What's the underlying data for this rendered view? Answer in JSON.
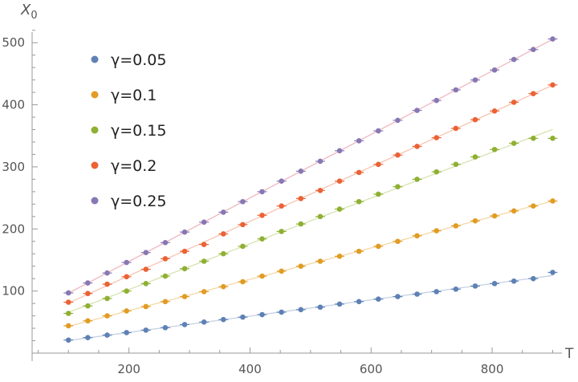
{
  "chart_data": {
    "type": "scatter",
    "xlabel": "T",
    "ylabel_main": "X",
    "ylabel_sub": "0",
    "xlim": [
      40,
      910
    ],
    "ylim": [
      0,
      530
    ],
    "xticks": [
      200,
      400,
      600,
      800
    ],
    "yticks": [
      100,
      200,
      300,
      400,
      500
    ],
    "x": [
      100,
      132,
      164,
      196,
      228,
      260,
      292,
      324,
      356,
      388,
      420,
      452,
      484,
      516,
      548,
      580,
      612,
      644,
      676,
      708,
      740,
      772,
      804,
      836,
      868,
      900
    ],
    "grid": false,
    "legend_position": "top-left",
    "series": [
      {
        "name": "γ=0.05",
        "color": "#5E81B5",
        "fit_color": "#c6d1e3",
        "values": [
          21,
          25,
          29,
          33,
          37,
          41,
          46,
          50,
          54,
          58,
          62,
          66,
          70,
          74,
          79,
          83,
          87,
          91,
          95,
          99,
          103,
          108,
          112,
          116,
          120,
          130
        ]
      },
      {
        "name": "γ=0.1",
        "color": "#E19C24",
        "fit_color": "#f3d9aa",
        "values": [
          44,
          52,
          60,
          68,
          75,
          83,
          91,
          99,
          107,
          115,
          124,
          132,
          140,
          148,
          156,
          164,
          172,
          180,
          189,
          197,
          205,
          213,
          221,
          229,
          237,
          245
        ]
      },
      {
        "name": "γ=0.15",
        "color": "#8FB032",
        "fit_color": "#d7e3b0",
        "values": [
          64,
          76,
          88,
          100,
          112,
          124,
          136,
          148,
          160,
          172,
          184,
          196,
          208,
          220,
          232,
          244,
          256,
          268,
          280,
          292,
          304,
          316,
          328,
          338,
          346,
          346
        ]
      },
      {
        "name": "γ=0.2",
        "color": "#EB6235",
        "fit_color": "#f6c5b3",
        "values": [
          82,
          96,
          111,
          123,
          135,
          152,
          164,
          175,
          192,
          207,
          222,
          237,
          249,
          262,
          277,
          291,
          304,
          319,
          333,
          347,
          362,
          376,
          390,
          404,
          418,
          432
        ]
      },
      {
        "name": "γ=0.25",
        "color": "#8778B3",
        "fit_color": "#f0b7c0",
        "values": [
          97,
          113,
          129,
          146,
          162,
          178,
          195,
          211,
          227,
          244,
          260,
          277,
          293,
          309,
          326,
          342,
          358,
          375,
          391,
          407,
          424,
          440,
          456,
          473,
          489,
          506
        ]
      }
    ]
  }
}
